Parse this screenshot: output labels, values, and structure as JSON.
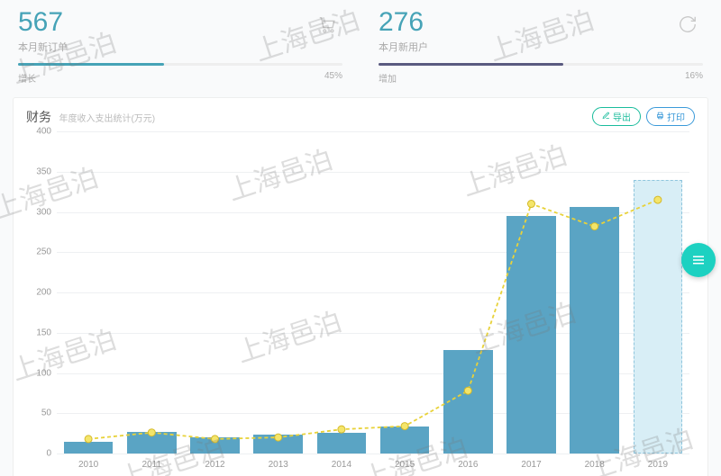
{
  "stats": [
    {
      "value": "567",
      "subtitle": "本月新订单",
      "growth_label": "增长",
      "percent_label": "45%",
      "bar_pct": 45,
      "bar_color": "#46a3b7",
      "icon": "cart"
    },
    {
      "value": "276",
      "subtitle": "本月新用户",
      "growth_label": "增加",
      "percent_label": "16%",
      "bar_pct": 57,
      "bar_color": "#5a5a80",
      "icon": "refresh"
    }
  ],
  "panel": {
    "title": "财务",
    "subtitle": "年度收入支出统计(万元)",
    "export_label": "导出",
    "print_label": "打印"
  },
  "chart": {
    "type": "bar+line",
    "ylim": [
      0,
      400
    ],
    "ytick_step": 50,
    "yticks": [
      0,
      50,
      100,
      150,
      200,
      250,
      300,
      350,
      400
    ],
    "categories": [
      "2010",
      "2011",
      "2012",
      "2013",
      "2014",
      "2015",
      "2016",
      "2017",
      "2018",
      "2019"
    ],
    "bars": [
      14,
      27,
      20,
      23,
      26,
      33,
      128,
      295,
      306,
      340
    ],
    "bar_color": "#5aa4c4",
    "bar_highlight_index": 9,
    "bar_highlight_fill": "#d8eef6",
    "bar_highlight_border": "#8fc5dd",
    "line": [
      18,
      26,
      18,
      20,
      30,
      34,
      78,
      310,
      282,
      315
    ],
    "line_color": "#e8d23a",
    "marker_fill": "#f4e56a",
    "marker_stroke": "#d4b92a",
    "marker_radius": 4,
    "grid_color": "#eef0f2",
    "background_color": "#ffffff",
    "label_fontsize": 10,
    "bar_width_pct": 78
  },
  "watermark_text": "上海邑泊",
  "fab_icon": "menu"
}
